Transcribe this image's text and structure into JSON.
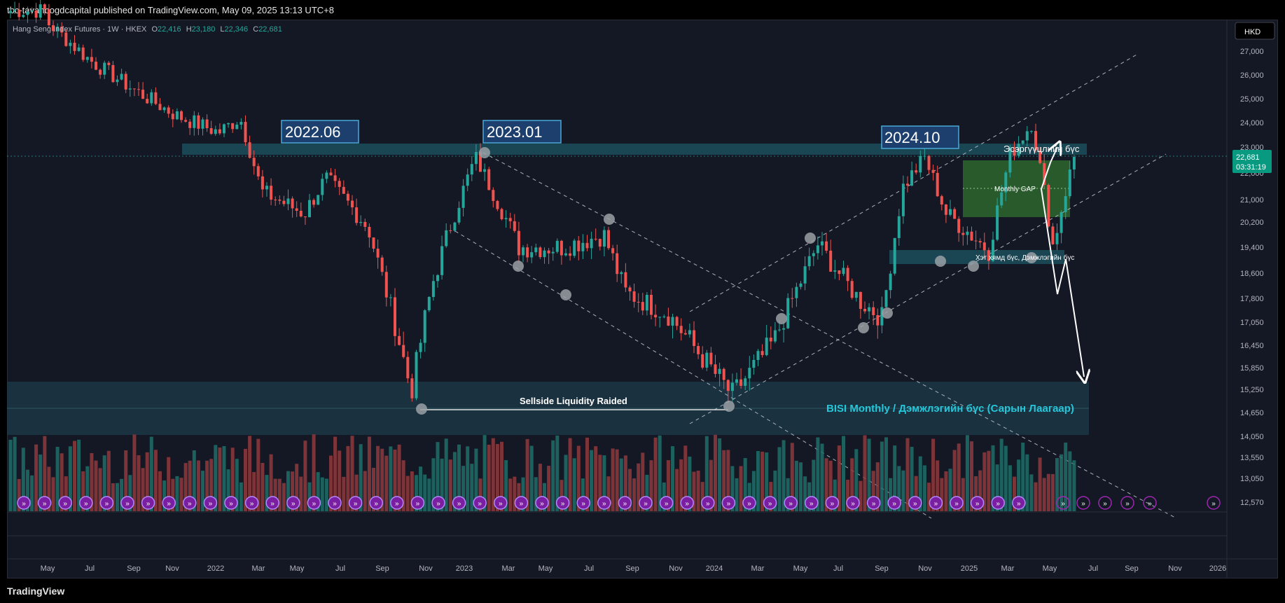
{
  "header": {
    "published": "tbc-tavanbogdcapital published on TradingView.com, May 09, 2025 13:13 UTC+8"
  },
  "footer": {
    "brand": "TradingView"
  },
  "legend": {
    "symbol": "Hang Seng Index Futures · 1W · HKEX",
    "o_label": "O",
    "o": "22,416",
    "h_label": "H",
    "h": "23,180",
    "l_label": "L",
    "l": "22,346",
    "c_label": "C",
    "c": "22,681"
  },
  "currency": "HKD",
  "price_tag": {
    "price": "22,681",
    "countdown": "03:31:19"
  },
  "colors": {
    "background": "#141824",
    "up": "#26a69a",
    "down": "#ef5350",
    "up_volume": "#1f6e6a",
    "down_volume": "#8e3a3c",
    "zone": "#1e4d5c",
    "gap": "#2e6b2e",
    "label_box": "#1c3f6e",
    "bisi_text": "#26c6da",
    "marker": "#7b1fa2"
  },
  "annotations": {
    "label_2022": "2022.06",
    "label_2023": "2023.01",
    "label_2024": "2024.10",
    "resistance": "Эсэргүүцлийн бүс",
    "monthly_gap": "Monthly GAP",
    "support": "Хэт хямд бүс, Дэмжлэгийн бүс",
    "sellside": "Sellside Liquidity Raided",
    "bisi": "BISI Monthly / Дэмжлэгийн бүс (Сарын Лаагаар)"
  },
  "chart_data": {
    "type": "candlestick",
    "timeframe": "1W",
    "y_ticks": [
      27000,
      26000,
      25000,
      24000,
      23000,
      22000,
      21000,
      20200,
      19400,
      18600,
      17800,
      17050,
      16450,
      15850,
      15250,
      14650,
      14050,
      13550,
      13050,
      12570
    ],
    "y_tick_labels": [
      "27,000",
      "26,000",
      "25,000",
      "24,000",
      "23,000",
      "22,000",
      "21,000",
      "20,200",
      "19,400",
      "18,600",
      "17,800",
      "17,050",
      "16,450",
      "15,850",
      "15,250",
      "14,650",
      "14,050",
      "13,550",
      "13,050",
      "12,570"
    ],
    "x_labels": [
      "May",
      "Jul",
      "Sep",
      "Nov",
      "2022",
      "Mar",
      "May",
      "Jul",
      "Sep",
      "Nov",
      "2023",
      "Mar",
      "May",
      "Jul",
      "Sep",
      "Nov",
      "2024",
      "Mar",
      "May",
      "Jul",
      "Sep",
      "Nov",
      "2025",
      "Mar",
      "May",
      "Jul",
      "Sep",
      "Nov",
      "2026"
    ],
    "x_range": [
      "2021-04",
      "2026-02"
    ],
    "approx_closes": [
      {
        "date": "2021-05",
        "close": 28200
      },
      {
        "date": "2021-07",
        "close": 26600
      },
      {
        "date": "2021-09",
        "close": 25400
      },
      {
        "date": "2021-11",
        "close": 24300
      },
      {
        "date": "2022-01",
        "close": 23600
      },
      {
        "date": "2022-02",
        "close": 24200
      },
      {
        "date": "2022-03",
        "close": 21300
      },
      {
        "date": "2022-05",
        "close": 20500
      },
      {
        "date": "2022-06",
        "close": 21800
      },
      {
        "date": "2022-08",
        "close": 20000
      },
      {
        "date": "2022-10",
        "close": 15200
      },
      {
        "date": "2022-11",
        "close": 18300
      },
      {
        "date": "2023-01",
        "close": 22600
      },
      {
        "date": "2023-03",
        "close": 19400
      },
      {
        "date": "2023-05",
        "close": 19400
      },
      {
        "date": "2023-07",
        "close": 19800
      },
      {
        "date": "2023-08",
        "close": 18000
      },
      {
        "date": "2023-10",
        "close": 17300
      },
      {
        "date": "2024-01",
        "close": 15100
      },
      {
        "date": "2024-03",
        "close": 16600
      },
      {
        "date": "2024-05",
        "close": 19500
      },
      {
        "date": "2024-07",
        "close": 17700
      },
      {
        "date": "2024-08",
        "close": 17200
      },
      {
        "date": "2024-09",
        "close": 21500
      },
      {
        "date": "2024-10",
        "close": 22600
      },
      {
        "date": "2024-11",
        "close": 20500
      },
      {
        "date": "2025-01",
        "close": 19300
      },
      {
        "date": "2025-02",
        "close": 22700
      },
      {
        "date": "2025-03",
        "close": 24000
      },
      {
        "date": "2025-04",
        "close": 19400
      },
      {
        "date": "2025-05",
        "close": 22681
      }
    ]
  }
}
